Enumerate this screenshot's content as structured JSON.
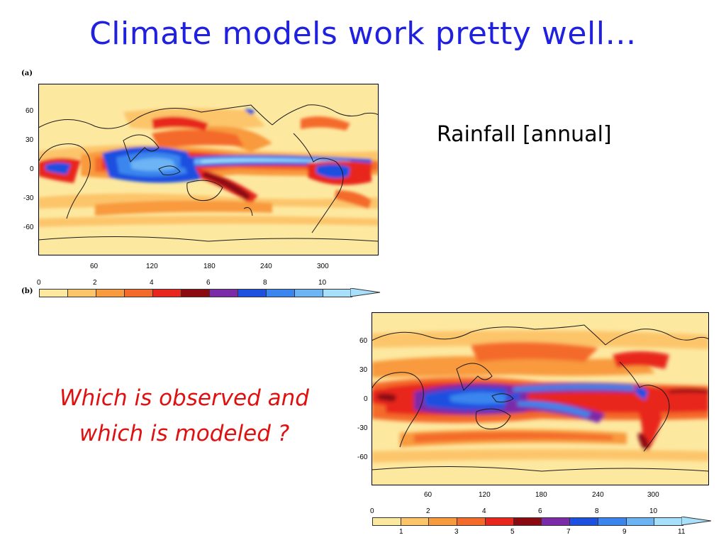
{
  "slide": {
    "title": "Climate models work pretty well…",
    "subtitle": "Rainfall [annual]",
    "question_line1": "Which is observed and",
    "question_line2": "which is modeled ?"
  },
  "panels": {
    "a_tag": "(a)",
    "b_tag": "(b)"
  },
  "axes": {
    "lat_ticks": [
      "60",
      "30",
      "0",
      "-30",
      "-60"
    ],
    "lon_ticks": [
      "60",
      "120",
      "180",
      "240",
      "300"
    ]
  },
  "colorbar": {
    "top_ticks": [
      "0",
      "2",
      "4",
      "6",
      "8",
      "10"
    ],
    "bottom_ticks": [
      "1",
      "3",
      "5",
      "7",
      "9",
      "11"
    ],
    "colors": [
      "#fde8a0",
      "#fcc56a",
      "#f89a3e",
      "#f46a2a",
      "#e8261e",
      "#8b0a12",
      "#7b2aa8",
      "#1e50e0",
      "#3a86ee",
      "#6cb4f4",
      "#a6e0fa"
    ]
  }
}
